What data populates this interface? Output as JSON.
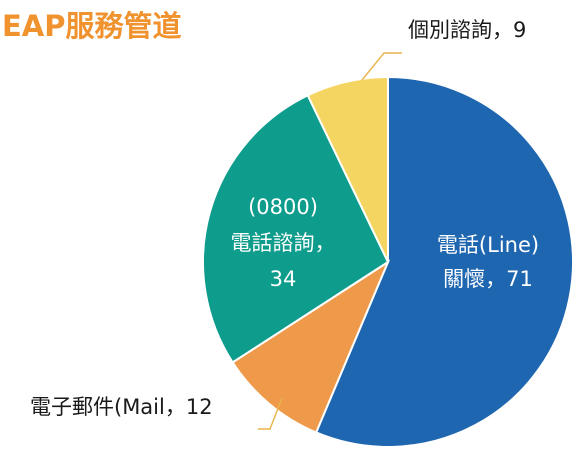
{
  "title": "EAP服務管道",
  "colors": {
    "title": "#F0922E",
    "leader": "#E8B44A"
  },
  "chart_data": {
    "type": "pie",
    "title": "EAP服務管道",
    "slices": [
      {
        "label_lines": [
          "電話(Line)",
          "關懷，71"
        ],
        "value": 71,
        "color": "#1E66B0",
        "label_color": "#FFFFFF"
      },
      {
        "label_lines": [
          "電子郵件(Mail，12"
        ],
        "value": 12,
        "color": "#EE9A4A",
        "label_color": "#1A1A1A"
      },
      {
        "label_lines": [
          "(0800)",
          "電話諮詢，",
          "34"
        ],
        "value": 34,
        "color": "#0E9C8C",
        "label_color": "#FFFFFF"
      },
      {
        "label_lines": [
          "個別諮詢，9"
        ],
        "value": 9,
        "color": "#F5D562",
        "label_color": "#1A1A1A"
      }
    ]
  }
}
